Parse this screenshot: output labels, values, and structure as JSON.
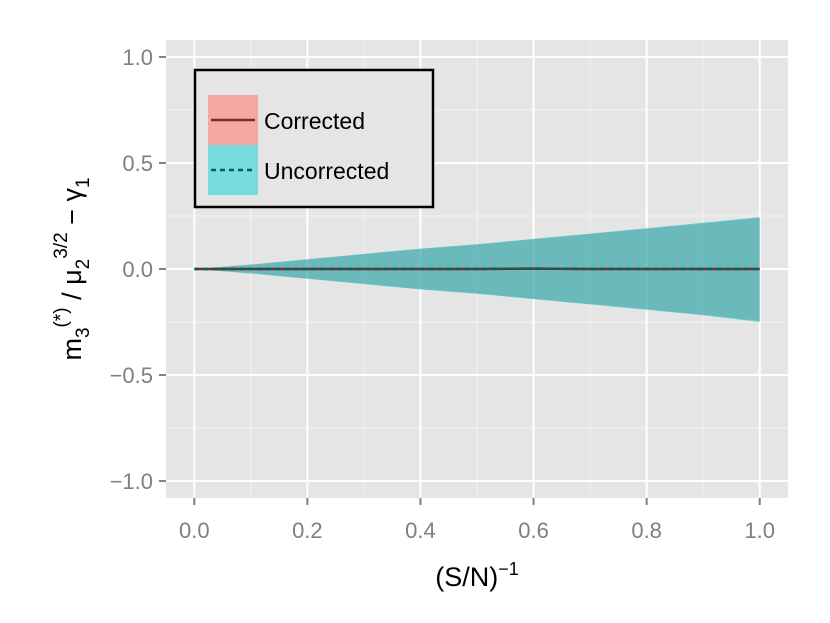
{
  "chart_data": {
    "type": "area",
    "title": "",
    "xlabel": {
      "base": "(S/N)",
      "sup": "−1"
    },
    "ylabel": {
      "m": "m",
      "m_sub": "3",
      "m_sup": "(*)",
      "slash": " / ",
      "mu": "μ",
      "mu_sub": "2",
      "mu_sup": "3/2",
      "minus": " − ",
      "gamma": "γ",
      "gamma_sub": "1"
    },
    "xlim": [
      -0.05,
      1.05
    ],
    "ylim": [
      -1.08,
      1.08
    ],
    "xticks": [
      0.0,
      0.2,
      0.4,
      0.6,
      0.8,
      1.0
    ],
    "xtick_labels": [
      "0.0",
      "0.2",
      "0.4",
      "0.6",
      "0.8",
      "1.0"
    ],
    "yticks": [
      -1.0,
      -0.5,
      0.0,
      0.5,
      1.0
    ],
    "ytick_labels": [
      "−1.0",
      "−0.5",
      "0.0",
      "0.5",
      "1.0"
    ],
    "grid": true,
    "legend_position": "top-left",
    "series": [
      {
        "name": "Corrected",
        "line_style": "solid",
        "fill_color": "#F8766D",
        "line_color": "#7A2F2A",
        "x": [
          0.0,
          0.1,
          0.2,
          0.3,
          0.4,
          0.5,
          0.6,
          0.7,
          0.8,
          0.9,
          1.0
        ],
        "mean": [
          0.0,
          0.0,
          0.0,
          0.0,
          0.0,
          0.0,
          0.002,
          0.0,
          0.0,
          0.0,
          0.0
        ],
        "upper": [
          0.0,
          0.02,
          0.045,
          0.07,
          0.095,
          0.115,
          0.14,
          0.165,
          0.19,
          0.215,
          0.24
        ],
        "lower": [
          0.0,
          -0.02,
          -0.045,
          -0.07,
          -0.095,
          -0.115,
          -0.14,
          -0.165,
          -0.19,
          -0.215,
          -0.245
        ]
      },
      {
        "name": "Uncorrected",
        "line_style": "dashed",
        "fill_color": "#00BFC4",
        "line_color": "#0A5C60",
        "x": [
          0.0,
          0.1,
          0.2,
          0.3,
          0.4,
          0.5,
          0.6,
          0.7,
          0.8,
          0.9,
          1.0
        ],
        "mean": [
          0.0,
          0.0,
          0.0,
          0.0,
          0.0,
          0.0,
          0.002,
          0.0,
          0.0,
          0.0,
          0.0
        ],
        "upper": [
          0.0,
          0.021,
          0.046,
          0.071,
          0.096,
          0.117,
          0.142,
          0.167,
          0.192,
          0.218,
          0.245
        ],
        "lower": [
          0.0,
          -0.021,
          -0.046,
          -0.071,
          -0.096,
          -0.117,
          -0.142,
          -0.167,
          -0.192,
          -0.218,
          -0.25
        ]
      }
    ]
  }
}
